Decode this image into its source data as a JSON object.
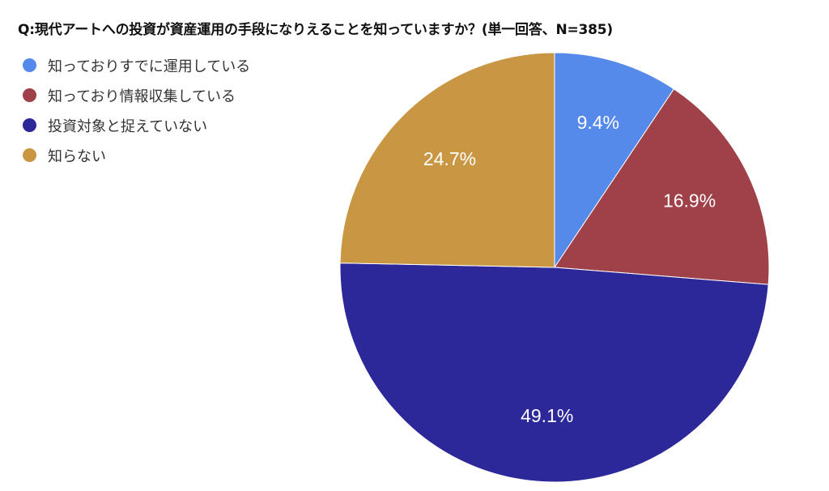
{
  "title": "Q:現代アートへの投資が資産運用の手段になりえることを知っていますか？(単一回答、N=385)",
  "chart_data": {
    "type": "pie",
    "title": "Q:現代アートへの投資が資産運用の手段になりえることを知っていますか？(単一回答、N=385)",
    "legend_position": "top-left",
    "slices": [
      {
        "label": "知っておりすでに運用している",
        "value": 9.4,
        "display": "9.4%",
        "color": "#5589EA"
      },
      {
        "label": "知っており情報収集している",
        "value": 16.9,
        "display": "16.9%",
        "color": "#A0414A"
      },
      {
        "label": "投資対象と捉えていない",
        "value": 49.1,
        "display": "49.1%",
        "color": "#2D2899"
      },
      {
        "label": "知らない",
        "value": 24.7,
        "display": "24.7%",
        "color": "#C99744"
      }
    ]
  }
}
